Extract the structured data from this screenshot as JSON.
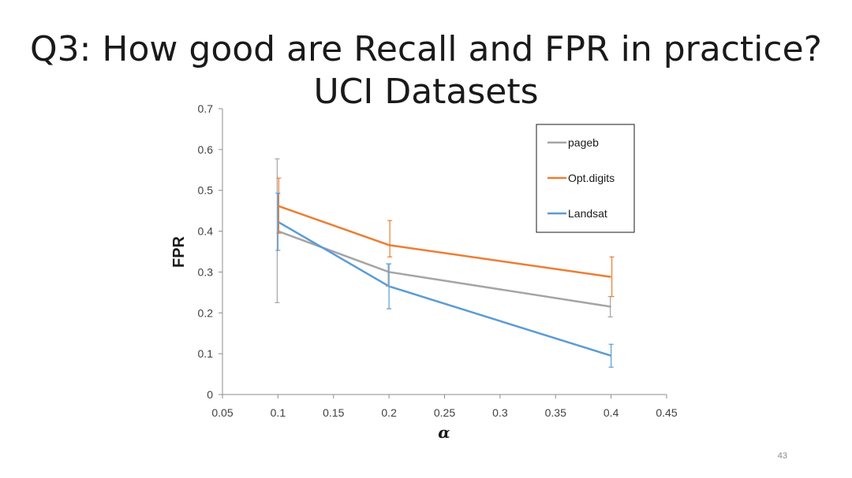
{
  "slide": {
    "title_line1": "Q3: How good are Recall and FPR in practice?",
    "title_line2": "UCI Datasets",
    "page_number": "43"
  },
  "chart_data": {
    "type": "line",
    "title": "",
    "xlabel": "α",
    "ylabel": "FPR",
    "xlim": [
      0.05,
      0.45
    ],
    "ylim": [
      0,
      0.7
    ],
    "x_ticks": [
      0.05,
      0.1,
      0.15,
      0.2,
      0.25,
      0.3,
      0.35,
      0.4,
      0.45
    ],
    "x_tick_labels": [
      "0.05",
      "0.1",
      "0.15",
      "0.2",
      "0.25",
      "0.3",
      "0.35",
      "0.4",
      "0.45"
    ],
    "y_ticks": [
      0,
      0.1,
      0.2,
      0.3,
      0.4,
      0.5,
      0.6,
      0.7
    ],
    "y_tick_labels": [
      "0",
      "0.1",
      "0.2",
      "0.3",
      "0.4",
      "0.5",
      "0.6",
      "0.7"
    ],
    "legend_position": "top-right",
    "series": [
      {
        "name": "pageb",
        "color": "#a5a5a5",
        "x": [
          0.1,
          0.2,
          0.4
        ],
        "values": [
          0.4,
          0.3,
          0.215
        ],
        "err_low": [
          0.225,
          0.265,
          0.19
        ],
        "err_high": [
          0.577,
          0.32,
          0.24
        ]
      },
      {
        "name": "Opt.digits",
        "color": "#ed7d31",
        "x": [
          0.1,
          0.2,
          0.4
        ],
        "values": [
          0.462,
          0.366,
          0.288
        ],
        "err_low": [
          0.395,
          0.337,
          0.24
        ],
        "err_high": [
          0.53,
          0.426,
          0.337
        ]
      },
      {
        "name": "Landsat",
        "color": "#5b9bd5",
        "x": [
          0.1,
          0.2,
          0.4
        ],
        "values": [
          0.423,
          0.265,
          0.095
        ],
        "err_low": [
          0.353,
          0.21,
          0.067
        ],
        "err_high": [
          0.493,
          0.32,
          0.123
        ]
      }
    ]
  }
}
